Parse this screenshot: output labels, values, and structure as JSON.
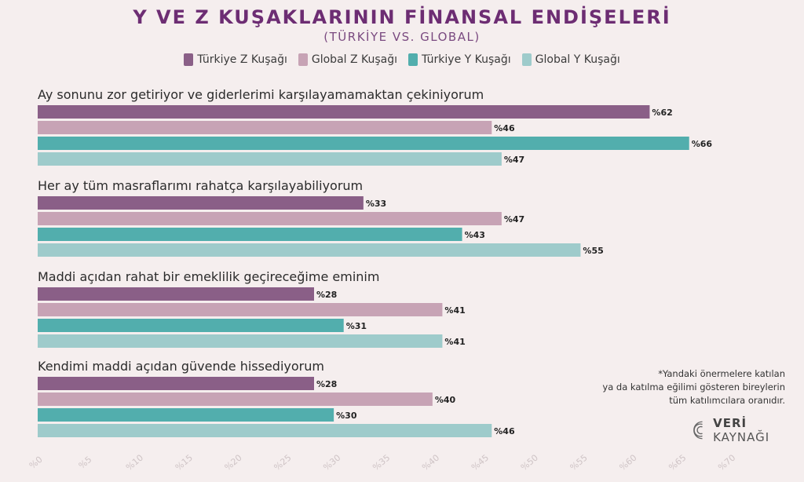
{
  "chart_data": {
    "type": "bar",
    "orientation": "horizontal",
    "title": "Y VE Z KUŞAKLARININ FİNANSAL ENDİŞELERİ",
    "subtitle": "(TÜRKİYE VS. GLOBAL)",
    "categories": [
      "Ay sonunu zor getiriyor ve giderlerimi karşılayamamaktan çekiniyorum",
      "Her ay tüm masraflarımı rahatça karşılayabiliyorum",
      "Maddi açıdan rahat bir emeklilik geçireceğime eminim",
      "Kendimi maddi açıdan güvende hissediyorum"
    ],
    "series": [
      {
        "name": "Türkiye Z Kuşağı",
        "color": "#8a5f87",
        "values": [
          62,
          33,
          28,
          28
        ]
      },
      {
        "name": "Global Z Kuşağı",
        "color": "#c7a3b5",
        "values": [
          46,
          47,
          41,
          40
        ]
      },
      {
        "name": "Türkiye Y Kuşağı",
        "color": "#52aead",
        "values": [
          66,
          43,
          31,
          30
        ]
      },
      {
        "name": "Global Y Kuşağı",
        "color": "#9ecbcb",
        "values": [
          47,
          55,
          41,
          46
        ]
      }
    ],
    "value_prefix": "%",
    "xlim": [
      0,
      70
    ],
    "xticks": [
      "%0",
      "%5",
      "%10",
      "%15",
      "%20",
      "%25",
      "%30",
      "%35",
      "%40",
      "%45",
      "%50",
      "%55",
      "%60",
      "%65",
      "%70"
    ],
    "legend_position": "top",
    "grid": false
  },
  "footnote": [
    "*Yandaki önermelere katılan",
    "ya da katılma eğilimi gösteren bireylerin",
    "tüm katılımcılara oranıdır."
  ],
  "brand": {
    "bold": "VERİ",
    "rest": "KAYNAĞI"
  }
}
